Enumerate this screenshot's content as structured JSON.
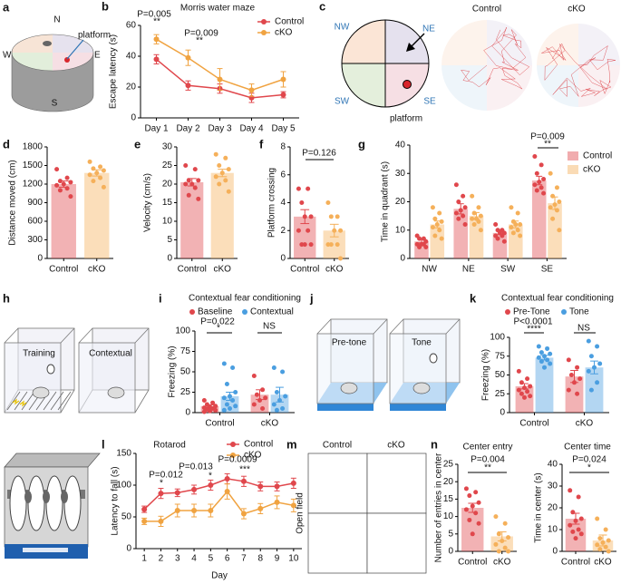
{
  "panel_a": {
    "letter": "a",
    "north": "N",
    "west": "W",
    "east": "E",
    "south": "S",
    "platform": "platform"
  },
  "panel_c": {
    "letter": "c",
    "nw": "NW",
    "ne": "NE",
    "sw": "SW",
    "se": "SE",
    "platform": "platform",
    "control": "Control",
    "cko": "cKO"
  },
  "panel_h": {
    "letter": "h",
    "training": "Training",
    "contextual": "Contextual"
  },
  "panel_j": {
    "letter": "j",
    "pre_tone": "Pre-tone",
    "tone": "Tone"
  },
  "panel_m": {
    "letter": "m",
    "control": "Control",
    "cko": "cKO",
    "side_label": "Open field"
  },
  "chart_data": [
    {
      "panel": "b",
      "type": "line",
      "title": "Morris water maze",
      "categories": [
        "Day 1",
        "Day 2",
        "Day 3",
        "Day 4",
        "Day 5"
      ],
      "ylabel": "Escape latency (s)",
      "ylim": [
        0,
        60
      ],
      "yticks": [
        0,
        20,
        40,
        60
      ],
      "series": [
        {
          "name": "Control",
          "color": "#e0474c",
          "values": [
            38,
            21,
            19,
            13,
            15
          ],
          "errors": [
            3,
            3,
            3,
            3,
            2
          ]
        },
        {
          "name": "cKO",
          "color": "#f0a341",
          "values": [
            51,
            39,
            25,
            18,
            25
          ],
          "errors": [
            3,
            5,
            7,
            4,
            5
          ]
        }
      ],
      "annotations": [
        "P=0.005",
        "**",
        "P=0.009",
        "**"
      ]
    },
    {
      "panel": "d",
      "type": "bar",
      "categories": [
        "Control",
        "cKO"
      ],
      "values": [
        1200,
        1380
      ],
      "errors": [
        50,
        50
      ],
      "colors": [
        "#e0474c",
        "#f5b05a"
      ],
      "points": [
        [
          1440,
          1300,
          1250,
          1230,
          1200,
          1180,
          1130,
          1100,
          1000
        ],
        [
          1560,
          1480,
          1450,
          1420,
          1380,
          1350,
          1300,
          1250,
          1150
        ]
      ],
      "ylabel": "Distance moved (cm)",
      "ylim": [
        0,
        1800
      ],
      "yticks": [
        0,
        300,
        600,
        900,
        1200,
        1500,
        1800
      ]
    },
    {
      "panel": "e",
      "type": "bar",
      "categories": [
        "Control",
        "cKO"
      ],
      "values": [
        20.5,
        23
      ],
      "errors": [
        1,
        1
      ],
      "colors": [
        "#e0474c",
        "#f5b05a"
      ],
      "points": [
        [
          25,
          24,
          21,
          21,
          20,
          20,
          19,
          17,
          16
        ],
        [
          28,
          27,
          25,
          24,
          23,
          22,
          21,
          20,
          18
        ]
      ],
      "ylabel": "Velocity (cm/s)",
      "ylim": [
        0,
        30
      ],
      "yticks": [
        0,
        5,
        10,
        15,
        20,
        25,
        30
      ]
    },
    {
      "panel": "f",
      "type": "bar",
      "categories": [
        "Control",
        "cKO"
      ],
      "values": [
        3,
        2
      ],
      "errors": [
        0.5,
        0.45
      ],
      "colors": [
        "#e0474c",
        "#f5b05a"
      ],
      "points": [
        [
          5,
          5,
          4,
          3,
          3,
          2,
          2,
          1,
          1,
          1
        ],
        [
          4,
          3,
          3,
          2,
          2,
          1,
          1,
          1,
          0
        ]
      ],
      "ylabel": "Platform crossing",
      "ylim": [
        0,
        8
      ],
      "yticks": [
        0,
        2,
        4,
        6,
        8
      ],
      "annotations": [
        "P=0.126"
      ]
    },
    {
      "panel": "g",
      "type": "bar",
      "categories": [
        "NW",
        "NE",
        "SW",
        "SE"
      ],
      "ylabel": "Time in quadrant (s)",
      "ylim": [
        0,
        40
      ],
      "yticks": [
        0,
        10,
        20,
        30,
        40
      ],
      "series": [
        {
          "name": "Control",
          "color": "#e0474c",
          "values": [
            6,
            17.5,
            9,
            27.5
          ],
          "errors": [
            0.5,
            1.8,
            0.6,
            1.5
          ],
          "points": [
            [
              8,
              7,
              7,
              6,
              5,
              5,
              5,
              4,
              4
            ],
            [
              26,
              22,
              20,
              18,
              17,
              16,
              15,
              14,
              12
            ],
            [
              12,
              10,
              10,
              9,
              9,
              8,
              8,
              7,
              6
            ],
            [
              36,
              33,
              30,
              28,
              27,
              26,
              25,
              24,
              23
            ]
          ]
        },
        {
          "name": "cKO",
          "color": "#f5b05a",
          "values": [
            12,
            15,
            12,
            19.5
          ],
          "errors": [
            1.2,
            1.2,
            1.2,
            2.2
          ],
          "points": [
            [
              18,
              16,
              14,
              13,
              12,
              11,
              10,
              8,
              7
            ],
            [
              22,
              18,
              16,
              15,
              14,
              14,
              13,
              12,
              10
            ],
            [
              18,
              16,
              13,
              12,
              12,
              11,
              10,
              9,
              8
            ],
            [
              30,
              25,
              22,
              20,
              19,
              18,
              17,
              14,
              10
            ]
          ]
        }
      ],
      "annotations": [
        "P=0.009",
        "**"
      ]
    },
    {
      "panel": "i",
      "type": "bar",
      "title": "Contextual fear conditioning",
      "categories": [
        "Control",
        "cKO"
      ],
      "ylabel": "Freezing (%)",
      "ylim": [
        0,
        100
      ],
      "yticks": [
        0,
        25,
        50,
        75,
        100
      ],
      "series": [
        {
          "name": "Baseline",
          "color": "#e0474c",
          "values": [
            8,
            22
          ],
          "errors": [
            1.5,
            6
          ],
          "points": [
            [
              15,
              12,
              10,
              8,
              7,
              6,
              5,
              4,
              3,
              2,
              1
            ],
            [
              45,
              28,
              22,
              18,
              15,
              10,
              5
            ]
          ]
        },
        {
          "name": "Contextual",
          "color": "#4a9ee0",
          "values": [
            20,
            22
          ],
          "errors": [
            5,
            9
          ],
          "points": [
            [
              60,
              55,
              35,
              25,
              20,
              18,
              15,
              10,
              8,
              5,
              3
            ],
            [
              55,
              50,
              25,
              20,
              15,
              10,
              5,
              3
            ]
          ]
        }
      ],
      "annotations": [
        "P=0.022",
        "*",
        "NS"
      ]
    },
    {
      "panel": "k",
      "type": "bar",
      "title": "Contextual fear conditioning",
      "categories": [
        "Control",
        "cKO"
      ],
      "ylabel": "Freezing (%)",
      "ylim": [
        0,
        100
      ],
      "yticks": [
        0,
        25,
        50,
        75,
        100
      ],
      "series": [
        {
          "name": "Pre-Tone",
          "color": "#e0474c",
          "values": [
            35,
            48
          ],
          "errors": [
            3.5,
            8
          ],
          "points": [
            [
              55,
              45,
              40,
              35,
              33,
              30,
              28,
              25,
              22,
              20
            ],
            [
              70,
              60,
              50,
              45,
              40,
              30,
              25
            ]
          ]
        },
        {
          "name": "Tone",
          "color": "#4a9ee0",
          "values": [
            73,
            60
          ],
          "errors": [
            3,
            8.5
          ],
          "points": [
            [
              88,
              85,
              80,
              78,
              75,
              73,
              70,
              68,
              65,
              60
            ],
            [
              95,
              88,
              75,
              65,
              60,
              55,
              40,
              30
            ]
          ]
        }
      ],
      "annotations": [
        "P<0.0001",
        "****",
        "NS"
      ]
    },
    {
      "panel": "l",
      "type": "line",
      "title": "Rotarod",
      "x": [
        1,
        2,
        3,
        4,
        5,
        6,
        7,
        8,
        9,
        10
      ],
      "xlim": [
        0.5,
        10.5
      ],
      "xticks": [
        1,
        2,
        3,
        4,
        5,
        6,
        7,
        8,
        9,
        10
      ],
      "xlabel": "Day",
      "ylabel": "Latency to fall (s)",
      "ylim": [
        0,
        150
      ],
      "yticks": [
        0,
        50,
        100,
        150
      ],
      "series": [
        {
          "name": "Control",
          "color": "#e0474c",
          "values": [
            62,
            87,
            88,
            93,
            100,
            110,
            106,
            98,
            98,
            103
          ],
          "errors": [
            5,
            8,
            6,
            7,
            8,
            8,
            8,
            7,
            7,
            8
          ]
        },
        {
          "name": "cKO",
          "color": "#f0a341",
          "values": [
            43,
            43,
            60,
            60,
            60,
            90,
            55,
            63,
            73,
            68
          ],
          "errors": [
            5,
            8,
            10,
            10,
            10,
            12,
            8,
            8,
            10,
            10
          ]
        }
      ],
      "annotations": [
        "P=0.012",
        "*",
        "P=0.013",
        "*",
        "P=0.0009",
        "***"
      ]
    },
    {
      "panel": "n",
      "type": "bar",
      "title": "Center entry",
      "categories": [
        "Control",
        "cKO"
      ],
      "values": [
        12.5,
        4.3
      ],
      "errors": [
        1.3,
        1.3
      ],
      "colors": [
        "#e0474c",
        "#f5b05a"
      ],
      "points": [
        [
          18,
          17,
          16,
          14,
          13,
          12,
          11,
          9,
          8,
          5
        ],
        [
          10,
          8,
          5,
          4,
          3,
          2,
          1,
          0,
          0
        ]
      ],
      "ylabel": "Number of entries in center",
      "ylim": [
        0,
        25
      ],
      "yticks": [
        0,
        5,
        10,
        15,
        20,
        25
      ],
      "annotations": [
        "P=0.004",
        "**"
      ]
    },
    {
      "type": "bar",
      "title": "Center time",
      "categories": [
        "Control",
        "cKO"
      ],
      "values": [
        15,
        5
      ],
      "errors": [
        2.5,
        2.5
      ],
      "colors": [
        "#e0474c",
        "#f5b05a"
      ],
      "points": [
        [
          28,
          25,
          18,
          15,
          14,
          12,
          10,
          9,
          8,
          6
        ],
        [
          15,
          10,
          6,
          5,
          4,
          3,
          2,
          1,
          0
        ]
      ],
      "ylabel": "Time in center (s)",
      "ylim": [
        0,
        40
      ],
      "yticks": [
        0,
        10,
        20,
        30,
        40
      ],
      "annotations": [
        "P=0.024",
        "*"
      ]
    }
  ]
}
